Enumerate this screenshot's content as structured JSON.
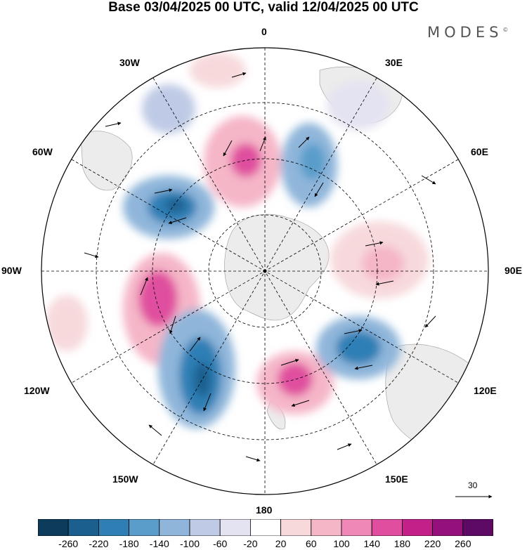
{
  "title": "Base 03/04/2025 00 UTC, valid 12/04/2025 00 UTC",
  "brand": "MODES",
  "brand_mark": "©",
  "longitude_labels": {
    "lon_0": "0",
    "lon_30e": "30E",
    "lon_60e": "60E",
    "lon_90e": "90E",
    "lon_120e": "120E",
    "lon_150e": "150E",
    "lon_180": "180",
    "lon_150w": "150W",
    "lon_120w": "120W",
    "lon_90w": "90W",
    "lon_60w": "60W",
    "lon_30w": "30W"
  },
  "reference_vector": "30",
  "colorbar": {
    "colors": [
      "#0d3b5c",
      "#1a5f8e",
      "#2f7fb5",
      "#5a9dcb",
      "#8fb6da",
      "#bfcae6",
      "#e4e3f1",
      "#ffffff",
      "#f7d9dc",
      "#f5b6c8",
      "#ef88b6",
      "#e04f9f",
      "#c4208a",
      "#94107a",
      "#5c0a64"
    ],
    "labels": [
      "-260",
      "-220",
      "-180",
      "-140",
      "-100",
      "-60",
      "-20",
      "20",
      "60",
      "100",
      "140",
      "180",
      "220",
      "260"
    ]
  }
}
